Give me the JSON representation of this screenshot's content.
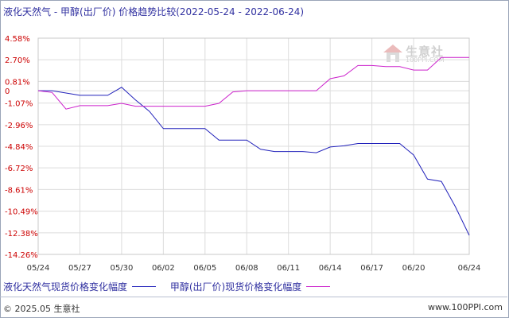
{
  "title": {
    "series_a": "液化天然气",
    "dash": "-",
    "series_b": "甲醇(出厂价)",
    "metric": "价格趋势比较",
    "date_range": "(2022-05-24 - 2022-06-24)"
  },
  "watermark": {
    "name": "生意社",
    "url": "100PPI.COM"
  },
  "footer": {
    "copyright": "© 2025.05 生意社",
    "site": "www.100PPI.com"
  },
  "colors": {
    "series_a": "#2222bb",
    "series_b": "#cc22cc",
    "tick_label": "#cc0000"
  },
  "chart_data": {
    "type": "line",
    "title": "液化天然气 - 甲醇(出厂价) 价格趋势比较(2022-05-24 - 2022-06-24)",
    "xlabel": "",
    "ylabel": "",
    "ylim": [
      -14.26,
      4.58
    ],
    "grid": true,
    "legend_position": "bottom",
    "y_ticks": [
      "4.58%",
      "2.70%",
      "0.81%",
      "0",
      "-1.07%",
      "-2.96%",
      "-4.84%",
      "-6.72%",
      "-8.61%",
      "-10.49%",
      "-12.38%",
      "-14.26%"
    ],
    "y_tick_values": [
      4.58,
      2.7,
      0.81,
      0,
      -1.07,
      -2.96,
      -4.84,
      -6.72,
      -8.61,
      -10.49,
      -12.38,
      -14.26
    ],
    "x": [
      "05/24",
      "05/25",
      "05/26",
      "05/27",
      "05/28",
      "05/29",
      "05/30",
      "05/31",
      "06/01",
      "06/02",
      "06/03",
      "06/04",
      "06/05",
      "06/06",
      "06/07",
      "06/08",
      "06/09",
      "06/10",
      "06/11",
      "06/12",
      "06/13",
      "06/14",
      "06/15",
      "06/16",
      "06/17",
      "06/18",
      "06/19",
      "06/20",
      "06/21",
      "06/22",
      "06/23",
      "06/24"
    ],
    "x_ticks": [
      "05/24",
      "05/27",
      "05/30",
      "06/02",
      "06/05",
      "06/08",
      "06/11",
      "06/14",
      "06/17",
      "06/20",
      "06/24"
    ],
    "series": [
      {
        "name": "液化天然气现货价格变化幅度",
        "color": "#2222bb",
        "values": [
          0,
          0,
          -0.2,
          -0.4,
          -0.4,
          -0.4,
          0.3,
          -0.8,
          -1.8,
          -3.3,
          -3.3,
          -3.3,
          -3.3,
          -4.3,
          -4.3,
          -4.3,
          -5.1,
          -5.3,
          -5.3,
          -5.3,
          -5.4,
          -4.9,
          -4.8,
          -4.6,
          -4.6,
          -4.6,
          -4.6,
          -5.6,
          -7.7,
          -7.9,
          -10.1,
          -12.6
        ]
      },
      {
        "name": "甲醇(出厂价)现货价格变化幅度",
        "color": "#cc22cc",
        "values": [
          0,
          -0.15,
          -1.6,
          -1.3,
          -1.3,
          -1.3,
          -1.1,
          -1.35,
          -1.35,
          -1.35,
          -1.35,
          -1.35,
          -1.35,
          -1.1,
          -0.1,
          0,
          0,
          0,
          0,
          0,
          0,
          1.05,
          1.3,
          2.2,
          2.2,
          2.1,
          2.1,
          1.8,
          1.8,
          2.9,
          2.9,
          2.9
        ]
      }
    ]
  }
}
